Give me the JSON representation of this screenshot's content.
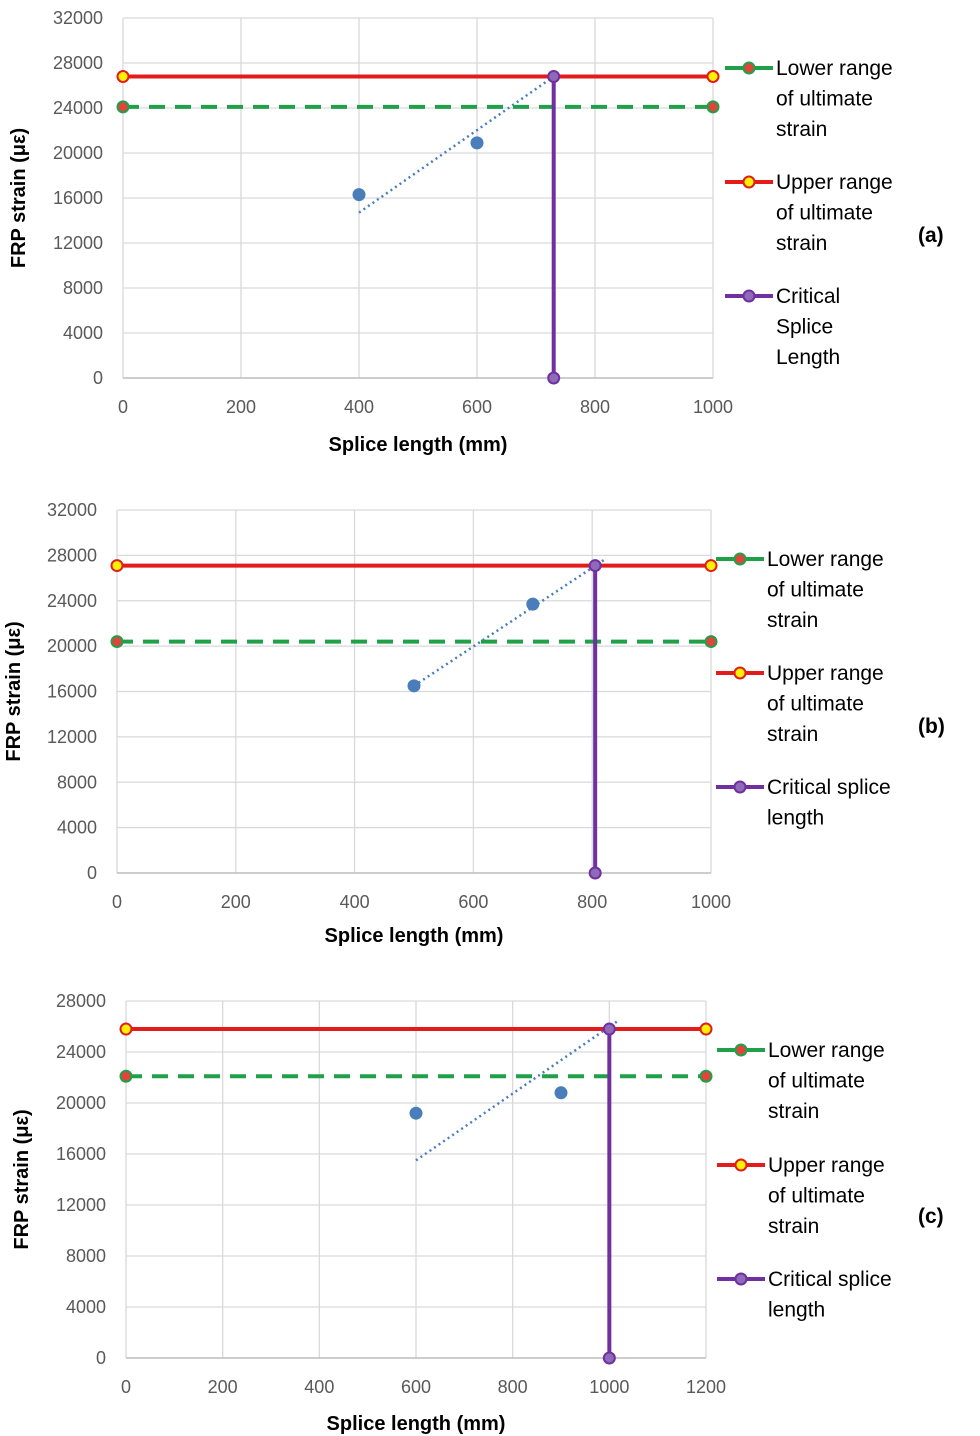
{
  "chart_data": [
    {
      "type": "line",
      "panel_label": "(a)",
      "xlabel": "Splice length (mm)",
      "ylabel": "FRP strain (με)",
      "xlim": [
        0,
        1000
      ],
      "ylim": [
        0,
        32000
      ],
      "x_ticks": [
        "0",
        "200",
        "400",
        "600",
        "800",
        "1000"
      ],
      "y_ticks": [
        "0",
        "4000",
        "8000",
        "12000",
        "16000",
        "20000",
        "24000",
        "28000",
        "32000"
      ],
      "grid": true,
      "legend_position": "right",
      "experimental_points": {
        "x": [
          400,
          600
        ],
        "y": [
          16300,
          20900
        ]
      },
      "trendline": {
        "x": [
          400,
          730
        ],
        "y": [
          14700,
          26800
        ]
      },
      "series": [
        {
          "name": "Lower range of ultimate strain",
          "legend_lines": [
            "Lower range",
            "of ultimate",
            "strain"
          ],
          "style": "dashed",
          "color": "#21A04A",
          "marker_fill": "#E0443A",
          "x": [
            0,
            1000
          ],
          "y": [
            24100,
            24100
          ]
        },
        {
          "name": "Upper range of ultimate strain",
          "legend_lines": [
            "Upper range",
            "of ultimate",
            "strain"
          ],
          "style": "solid",
          "color": "#E41B1B",
          "marker_fill": "#FFF200",
          "x": [
            0,
            1000
          ],
          "y": [
            26800,
            26800
          ]
        },
        {
          "name": "Critical Splice Length",
          "legend_lines": [
            "Critical",
            "Splice",
            "Length"
          ],
          "style": "solid",
          "color": "#7030A0",
          "marker_fill": "#8E6AB8",
          "x": [
            730,
            730
          ],
          "y": [
            0,
            26800
          ]
        }
      ]
    },
    {
      "type": "line",
      "panel_label": "(b)",
      "xlabel": "Splice length (mm)",
      "ylabel": "FRP strain (με)",
      "xlim": [
        0,
        1000
      ],
      "ylim": [
        0,
        32000
      ],
      "x_ticks": [
        "0",
        "200",
        "400",
        "600",
        "800",
        "1000"
      ],
      "y_ticks": [
        "0",
        "4000",
        "8000",
        "12000",
        "16000",
        "20000",
        "24000",
        "28000",
        "32000"
      ],
      "grid": true,
      "legend_position": "right",
      "experimental_points": {
        "x": [
          500,
          700
        ],
        "y": [
          16500,
          23700
        ]
      },
      "trendline": {
        "x": [
          500,
          820
        ],
        "y": [
          16500,
          27600
        ]
      },
      "series": [
        {
          "name": "Lower range of ultimate strain",
          "legend_lines": [
            "Lower range",
            "of ultimate",
            "strain"
          ],
          "style": "dashed",
          "color": "#21A04A",
          "marker_fill": "#E0443A",
          "x": [
            0,
            1000
          ],
          "y": [
            20400,
            20400
          ]
        },
        {
          "name": "Upper range of ultimate strain",
          "legend_lines": [
            "Upper range",
            "of ultimate",
            "strain"
          ],
          "style": "solid",
          "color": "#E41B1B",
          "marker_fill": "#FFF200",
          "x": [
            0,
            1000
          ],
          "y": [
            27100,
            27100
          ]
        },
        {
          "name": "Critical splice length",
          "legend_lines": [
            "Critical splice",
            "length"
          ],
          "style": "solid",
          "color": "#7030A0",
          "marker_fill": "#8E6AB8",
          "x": [
            805,
            805
          ],
          "y": [
            0,
            27100
          ]
        }
      ]
    },
    {
      "type": "line",
      "panel_label": "(c)",
      "xlabel": "Splice length (mm)",
      "ylabel": "FRP strain (με)",
      "xlim": [
        0,
        1200
      ],
      "ylim": [
        0,
        28000
      ],
      "x_ticks": [
        "0",
        "200",
        "400",
        "600",
        "800",
        "1000",
        "1200"
      ],
      "y_ticks": [
        "0",
        "4000",
        "8000",
        "12000",
        "16000",
        "20000",
        "24000",
        "28000"
      ],
      "grid": true,
      "legend_position": "right",
      "experimental_points": {
        "x": [
          600,
          900
        ],
        "y": [
          19200,
          20800
        ]
      },
      "trendline": {
        "x": [
          600,
          1020
        ],
        "y": [
          15500,
          26500
        ]
      },
      "series": [
        {
          "name": "Lower range of ultimate strain",
          "legend_lines": [
            "Lower range",
            "of ultimate",
            "strain"
          ],
          "style": "dashed",
          "color": "#21A04A",
          "marker_fill": "#E0443A",
          "x": [
            0,
            1200
          ],
          "y": [
            22100,
            22100
          ]
        },
        {
          "name": "Upper range of ultimate strain",
          "legend_lines": [
            "Upper range",
            "of ultimate",
            "strain"
          ],
          "style": "solid",
          "color": "#E41B1B",
          "marker_fill": "#FFF200",
          "x": [
            0,
            1200
          ],
          "y": [
            25800,
            25800
          ]
        },
        {
          "name": "Critical splice length",
          "legend_lines": [
            "Critical splice",
            "length"
          ],
          "style": "solid",
          "color": "#7030A0",
          "marker_fill": "#8E6AB8",
          "x": [
            1000,
            1000
          ],
          "y": [
            0,
            25800
          ]
        }
      ]
    }
  ]
}
